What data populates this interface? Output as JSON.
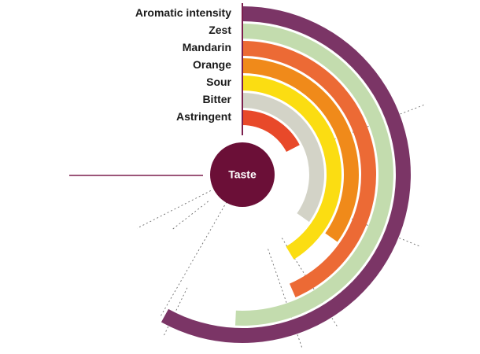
{
  "chart_data": {
    "type": "radial_bar",
    "center_label": "Taste",
    "max_value": 100,
    "categories": [
      "Aromatic intensity",
      "Zest",
      "Mandarin",
      "Orange",
      "Sour",
      "Bitter",
      "Astringent"
    ],
    "values": [
      80,
      70,
      60,
      48,
      57,
      48,
      24
    ],
    "colors": [
      "#7b3566",
      "#c3dcae",
      "#ec6a35",
      "#f08a1a",
      "#fbdd12",
      "#d3d3c7",
      "#e8492a"
    ],
    "center_color": "#6b0f37",
    "accent_line_color": "#7b1f4d",
    "grid": "dotted radial guides",
    "legend": "left of bars, right-aligned"
  }
}
